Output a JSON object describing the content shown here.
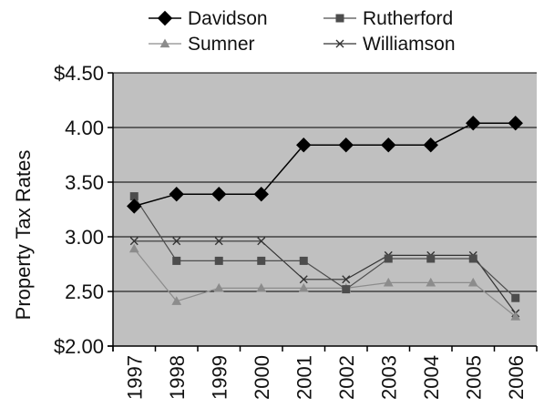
{
  "chart_data": {
    "type": "line",
    "title": "",
    "xlabel": "",
    "ylabel": "Property Tax Rates",
    "x": [
      "1997",
      "1998",
      "1999",
      "2000",
      "2001",
      "2002",
      "2003",
      "2004",
      "2005",
      "2006"
    ],
    "ylim": [
      2.0,
      4.5
    ],
    "yticks": [
      2.0,
      2.5,
      3.0,
      3.5,
      4.0,
      4.5
    ],
    "ytick_labels": [
      "$2.00",
      "2.50",
      "3.00",
      "3.50",
      "4.00",
      "$4.50"
    ],
    "grid": true,
    "plot_background": "#c0c0c0",
    "legend_position": "top",
    "series": [
      {
        "name": "Davidson",
        "color": "#000000",
        "marker": "diamond",
        "values": [
          3.28,
          3.39,
          3.39,
          3.39,
          3.84,
          3.84,
          3.84,
          3.84,
          4.04,
          4.04
        ]
      },
      {
        "name": "Rutherford",
        "color": "#4d4d4d",
        "marker": "square",
        "values": [
          3.37,
          2.78,
          2.78,
          2.78,
          2.78,
          2.52,
          2.8,
          2.8,
          2.8,
          2.44
        ]
      },
      {
        "name": "Sumner",
        "color": "#8c8c8c",
        "marker": "triangle",
        "values": [
          2.89,
          2.41,
          2.53,
          2.53,
          2.53,
          2.53,
          2.58,
          2.58,
          2.58,
          2.27
        ]
      },
      {
        "name": "Williamson",
        "color": "#333333",
        "marker": "x",
        "values": [
          2.96,
          2.96,
          2.96,
          2.96,
          2.61,
          2.61,
          2.83,
          2.83,
          2.83,
          2.3
        ]
      }
    ]
  }
}
